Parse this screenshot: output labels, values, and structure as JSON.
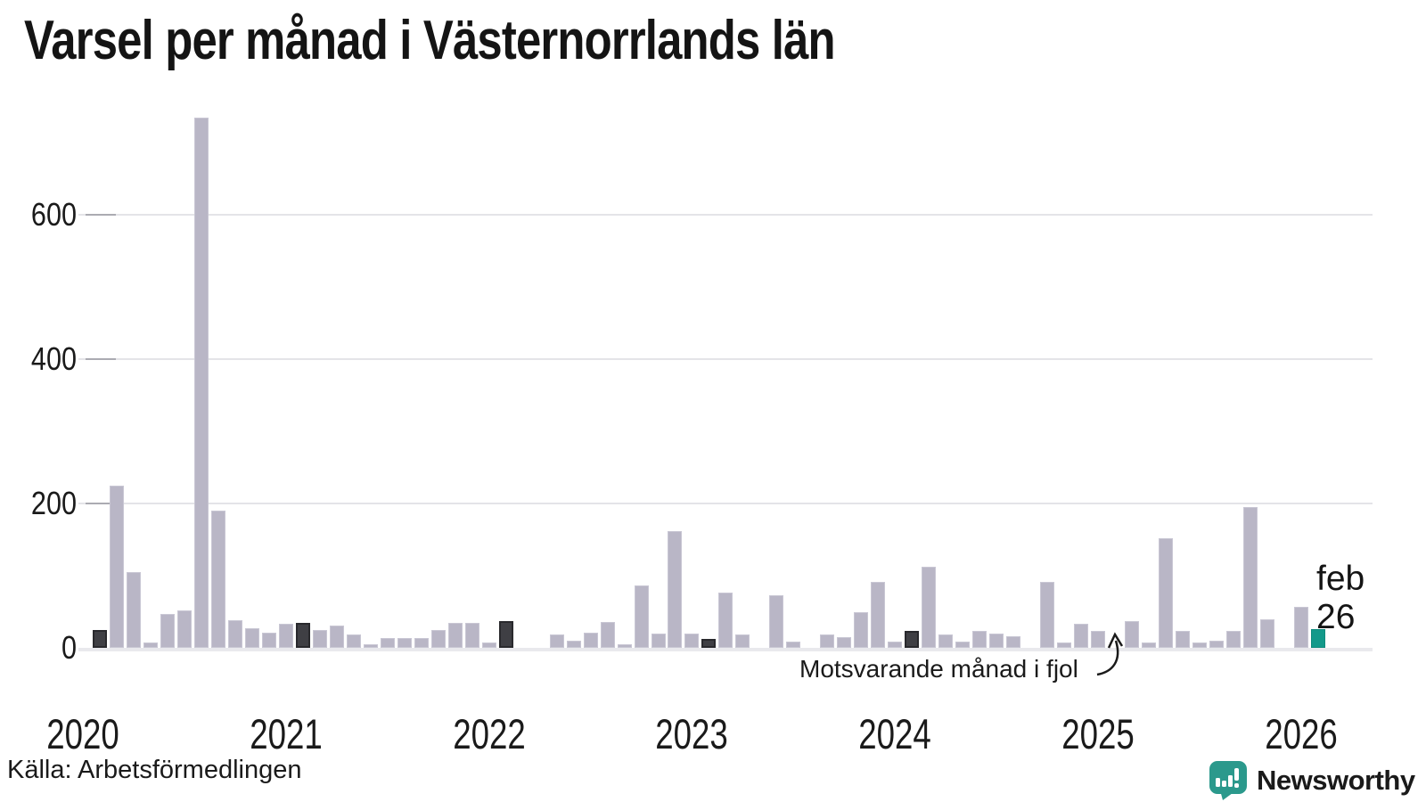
{
  "title": "Varsel per månad i Västernorrlands län",
  "source": "Källa: Arbetsförmedlingen",
  "annotation": {
    "text": "Motsvarande månad i fjol",
    "current_label_month": "feb",
    "current_label_year": "26"
  },
  "branding": {
    "name": "Newsworthy",
    "color": "#2b998c"
  },
  "colors": {
    "bar_normal": "#b9b6c6",
    "bar_reference": "#3f3f44",
    "bar_current": "#13998a",
    "gridline": "#e4e4e8",
    "axis_line": "#e9e9ed",
    "text": "#1a1a1a"
  },
  "chart_data": {
    "type": "bar",
    "title": "Varsel per månad i Västernorrlands län",
    "xlabel": "",
    "ylabel": "",
    "ylim": [
      0,
      760
    ],
    "yticks": [
      0,
      200,
      400,
      600
    ],
    "grid": true,
    "legend_position": "none",
    "start_month": "2020-02",
    "end_month": "2026-02",
    "year_labels": [
      "2020",
      "2021",
      "2022",
      "2023",
      "2024",
      "2025",
      "2026"
    ],
    "series_note": "kind: normal = gray month bar, ref = dark bar (February of earlier years, 'motsvarande månad i fjol'), current = teal latest month (feb 26)",
    "months": [
      {
        "label": "feb 2020",
        "value": 25,
        "kind": "ref"
      },
      {
        "label": "mar 2020",
        "value": 225,
        "kind": "normal"
      },
      {
        "label": "apr 2020",
        "value": 105,
        "kind": "normal"
      },
      {
        "label": "maj 2020",
        "value": 8,
        "kind": "normal"
      },
      {
        "label": "jun 2020",
        "value": 47,
        "kind": "normal"
      },
      {
        "label": "jul 2020",
        "value": 52,
        "kind": "normal"
      },
      {
        "label": "aug 2020",
        "value": 735,
        "kind": "normal"
      },
      {
        "label": "sep 2020",
        "value": 190,
        "kind": "normal"
      },
      {
        "label": "okt 2020",
        "value": 38,
        "kind": "normal"
      },
      {
        "label": "nov 2020",
        "value": 27,
        "kind": "normal"
      },
      {
        "label": "dec 2020",
        "value": 21,
        "kind": "normal"
      },
      {
        "label": "jan 2021",
        "value": 33,
        "kind": "normal"
      },
      {
        "label": "feb 2021",
        "value": 34,
        "kind": "ref"
      },
      {
        "label": "mar 2021",
        "value": 25,
        "kind": "normal"
      },
      {
        "label": "apr 2021",
        "value": 31,
        "kind": "normal"
      },
      {
        "label": "maj 2021",
        "value": 18,
        "kind": "normal"
      },
      {
        "label": "jun 2021",
        "value": 5,
        "kind": "normal"
      },
      {
        "label": "jul 2021",
        "value": 14,
        "kind": "normal"
      },
      {
        "label": "aug 2021",
        "value": 13,
        "kind": "normal"
      },
      {
        "label": "sep 2021",
        "value": 13,
        "kind": "normal"
      },
      {
        "label": "okt 2021",
        "value": 25,
        "kind": "normal"
      },
      {
        "label": "nov 2021",
        "value": 35,
        "kind": "normal"
      },
      {
        "label": "dec 2021",
        "value": 35,
        "kind": "normal"
      },
      {
        "label": "jan 2022",
        "value": 7,
        "kind": "normal"
      },
      {
        "label": "feb 2022",
        "value": 37,
        "kind": "ref"
      },
      {
        "label": "mar 2022",
        "value": 0,
        "kind": "normal"
      },
      {
        "label": "apr 2022",
        "value": 0,
        "kind": "normal"
      },
      {
        "label": "maj 2022",
        "value": 19,
        "kind": "normal"
      },
      {
        "label": "jun 2022",
        "value": 10,
        "kind": "normal"
      },
      {
        "label": "jul 2022",
        "value": 21,
        "kind": "normal"
      },
      {
        "label": "aug 2022",
        "value": 36,
        "kind": "normal"
      },
      {
        "label": "sep 2022",
        "value": 5,
        "kind": "normal"
      },
      {
        "label": "okt 2022",
        "value": 86,
        "kind": "normal"
      },
      {
        "label": "nov 2022",
        "value": 20,
        "kind": "normal"
      },
      {
        "label": "dec 2022",
        "value": 162,
        "kind": "normal"
      },
      {
        "label": "jan 2023",
        "value": 20,
        "kind": "normal"
      },
      {
        "label": "feb 2023",
        "value": 12,
        "kind": "ref"
      },
      {
        "label": "mar 2023",
        "value": 76,
        "kind": "normal"
      },
      {
        "label": "apr 2023",
        "value": 18,
        "kind": "normal"
      },
      {
        "label": "maj 2023",
        "value": 0,
        "kind": "normal"
      },
      {
        "label": "jun 2023",
        "value": 73,
        "kind": "normal"
      },
      {
        "label": "jul 2023",
        "value": 9,
        "kind": "normal"
      },
      {
        "label": "aug 2023",
        "value": 0,
        "kind": "normal"
      },
      {
        "label": "sep 2023",
        "value": 18,
        "kind": "normal"
      },
      {
        "label": "okt 2023",
        "value": 15,
        "kind": "normal"
      },
      {
        "label": "nov 2023",
        "value": 50,
        "kind": "normal"
      },
      {
        "label": "dec 2023",
        "value": 91,
        "kind": "normal"
      },
      {
        "label": "jan 2024",
        "value": 9,
        "kind": "normal"
      },
      {
        "label": "feb 2024",
        "value": 24,
        "kind": "ref"
      },
      {
        "label": "mar 2024",
        "value": 112,
        "kind": "normal"
      },
      {
        "label": "apr 2024",
        "value": 19,
        "kind": "normal"
      },
      {
        "label": "maj 2024",
        "value": 9,
        "kind": "normal"
      },
      {
        "label": "jun 2024",
        "value": 23,
        "kind": "normal"
      },
      {
        "label": "jul 2024",
        "value": 20,
        "kind": "normal"
      },
      {
        "label": "aug 2024",
        "value": 16,
        "kind": "normal"
      },
      {
        "label": "sep 2024",
        "value": 0,
        "kind": "normal"
      },
      {
        "label": "okt 2024",
        "value": 91,
        "kind": "normal"
      },
      {
        "label": "nov 2024",
        "value": 7,
        "kind": "normal"
      },
      {
        "label": "dec 2024",
        "value": 33,
        "kind": "normal"
      },
      {
        "label": "jan 2025",
        "value": 23,
        "kind": "normal"
      },
      {
        "label": "feb 2025",
        "value": 0,
        "kind": "ref"
      },
      {
        "label": "mar 2025",
        "value": 37,
        "kind": "normal"
      },
      {
        "label": "apr 2025",
        "value": 8,
        "kind": "normal"
      },
      {
        "label": "maj 2025",
        "value": 152,
        "kind": "normal"
      },
      {
        "label": "jun 2025",
        "value": 23,
        "kind": "normal"
      },
      {
        "label": "jul 2025",
        "value": 8,
        "kind": "normal"
      },
      {
        "label": "aug 2025",
        "value": 10,
        "kind": "normal"
      },
      {
        "label": "sep 2025",
        "value": 24,
        "kind": "normal"
      },
      {
        "label": "okt 2025",
        "value": 195,
        "kind": "normal"
      },
      {
        "label": "nov 2025",
        "value": 40,
        "kind": "normal"
      },
      {
        "label": "dec 2025",
        "value": 0,
        "kind": "normal"
      },
      {
        "label": "jan 2026",
        "value": 57,
        "kind": "normal"
      },
      {
        "label": "feb 2026",
        "value": 26,
        "kind": "current"
      }
    ]
  }
}
